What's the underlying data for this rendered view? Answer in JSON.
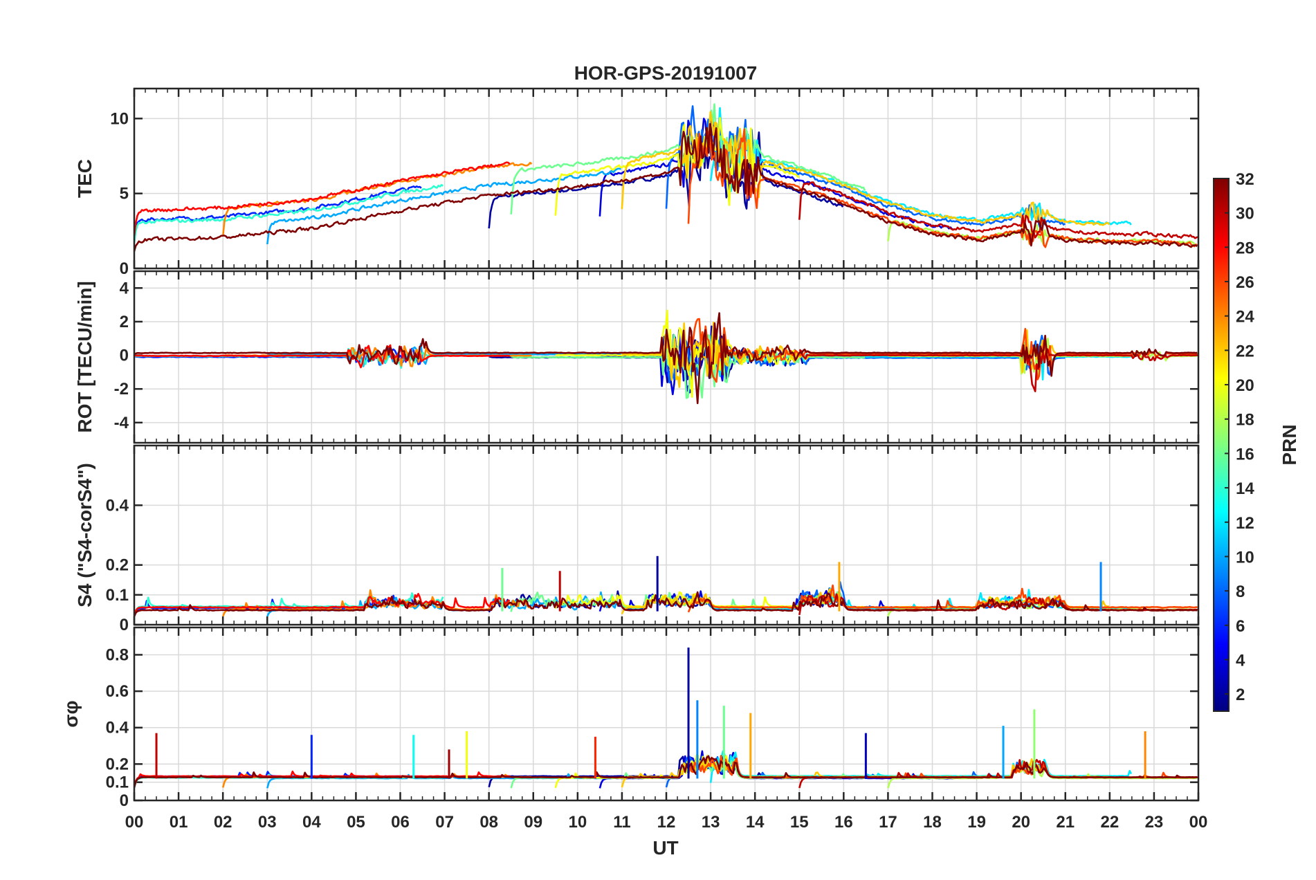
{
  "chart_data": {
    "type": "line",
    "title": "HOR-GPS-20191007",
    "xlabel": "UT",
    "xlim": [
      0,
      24
    ],
    "x_ticks": [
      0,
      1,
      2,
      3,
      4,
      5,
      6,
      7,
      8,
      9,
      10,
      11,
      12,
      13,
      14,
      15,
      16,
      17,
      18,
      19,
      20,
      21,
      22,
      23,
      24
    ],
    "x_tick_labels": [
      "00",
      "01",
      "02",
      "03",
      "04",
      "05",
      "06",
      "07",
      "08",
      "09",
      "10",
      "11",
      "12",
      "13",
      "14",
      "15",
      "16",
      "17",
      "18",
      "19",
      "20",
      "21",
      "22",
      "23",
      "00"
    ],
    "grid": true,
    "panels": [
      {
        "id": "tec",
        "ylabel": "TEC",
        "ylim": [
          0,
          12
        ],
        "y_ticks": [
          0,
          5,
          10
        ],
        "y_tick_labels": [
          "0",
          "5",
          "10"
        ],
        "profile": {
          "x": [
            0,
            2,
            4,
            6,
            8,
            10,
            11,
            12,
            12.5,
            13,
            13.5,
            14,
            15,
            16,
            17,
            18,
            19,
            20,
            21,
            22,
            23,
            24
          ],
          "y": [
            2.8,
            3.0,
            3.6,
            4.8,
            5.8,
            6.4,
            6.8,
            7.3,
            8.0,
            8.3,
            7.5,
            7.0,
            6.2,
            5.2,
            4.0,
            3.2,
            2.8,
            3.3,
            2.8,
            2.6,
            2.6,
            2.4
          ]
        },
        "spread": 1.1,
        "bursts": [
          {
            "start": 12.3,
            "end": 14.1,
            "amp": 4.5
          },
          {
            "start": 20.0,
            "end": 20.6,
            "amp": 2.0
          }
        ]
      },
      {
        "id": "rot",
        "ylabel": "ROT [TECU/min]",
        "ylim": [
          -5.2,
          5
        ],
        "y_ticks": [
          -4,
          -2,
          0,
          2,
          4
        ],
        "y_tick_labels": [
          "-4",
          "-2",
          "0",
          "2",
          "4"
        ],
        "profile": {
          "x": [
            0,
            24
          ],
          "y": [
            0,
            0
          ]
        },
        "spread": 0.15,
        "bursts": [
          {
            "start": 4.8,
            "end": 6.6,
            "amp": 1.2
          },
          {
            "start": 11.9,
            "end": 13.4,
            "amp": 4.2
          },
          {
            "start": 13.4,
            "end": 15.2,
            "amp": 0.9
          },
          {
            "start": 20.0,
            "end": 20.7,
            "amp": 2.8
          },
          {
            "start": 22.5,
            "end": 23.3,
            "amp": 0.5
          }
        ]
      },
      {
        "id": "s4",
        "ylabel": "S4 (\"S4-corS4\")",
        "ylim": [
          0,
          0.6
        ],
        "y_ticks": [
          0,
          0.1,
          0.2,
          0.4
        ],
        "y_tick_labels": [
          "0",
          "0.1",
          "0.2",
          "0.4"
        ],
        "profile": {
          "x": [
            0,
            24
          ],
          "y": [
            0.045,
            0.045
          ]
        },
        "spread": 0.03,
        "bursts": [
          {
            "start": 5.2,
            "end": 7.0,
            "amp": 0.07
          },
          {
            "start": 8.0,
            "end": 11.0,
            "amp": 0.08
          },
          {
            "start": 11.5,
            "end": 13.0,
            "amp": 0.1
          },
          {
            "start": 15.0,
            "end": 16.0,
            "amp": 0.12
          },
          {
            "start": 19.0,
            "end": 21.0,
            "amp": 0.08
          }
        ]
      },
      {
        "id": "sigphi",
        "ylabel": "σφ",
        "ylim": [
          0,
          0.95
        ],
        "y_ticks": [
          0,
          0.1,
          0.2,
          0.4,
          0.6,
          0.8
        ],
        "y_tick_labels": [
          "0",
          "0.1",
          "0.2",
          "0.4",
          "0.6",
          "0.8"
        ],
        "profile": {
          "x": [
            0,
            24
          ],
          "y": [
            0.12,
            0.12
          ]
        },
        "spread": 0.025,
        "bursts": [
          {
            "start": 12.3,
            "end": 13.6,
            "amp": 0.25
          },
          {
            "start": 19.8,
            "end": 20.6,
            "amp": 0.2
          }
        ]
      }
    ],
    "spikes": {
      "s4": [
        {
          "x": 11.8,
          "y": 0.23
        },
        {
          "x": 21.8,
          "y": 0.21
        },
        {
          "x": 8.3,
          "y": 0.19
        },
        {
          "x": 15.9,
          "y": 0.21
        },
        {
          "x": 9.6,
          "y": 0.18
        }
      ],
      "sigphi": [
        {
          "x": 12.5,
          "y": 0.84
        },
        {
          "x": 12.7,
          "y": 0.55
        },
        {
          "x": 13.3,
          "y": 0.52
        },
        {
          "x": 13.9,
          "y": 0.48
        },
        {
          "x": 0.5,
          "y": 0.37
        },
        {
          "x": 4.0,
          "y": 0.36
        },
        {
          "x": 6.3,
          "y": 0.36
        },
        {
          "x": 7.5,
          "y": 0.38
        },
        {
          "x": 10.4,
          "y": 0.35
        },
        {
          "x": 16.5,
          "y": 0.37
        },
        {
          "x": 19.6,
          "y": 0.41
        },
        {
          "x": 20.3,
          "y": 0.5
        },
        {
          "x": 22.8,
          "y": 0.38
        },
        {
          "x": 7.1,
          "y": 0.28
        }
      ]
    },
    "colorbar": {
      "label": "PRN",
      "range": [
        1,
        32
      ],
      "ticks": [
        2,
        4,
        6,
        8,
        10,
        12,
        14,
        16,
        18,
        20,
        22,
        24,
        26,
        28,
        30,
        32
      ],
      "tick_labels": [
        "2",
        "4",
        "6",
        "8",
        "10",
        "12",
        "14",
        "16",
        "18",
        "20",
        "22",
        "24",
        "26",
        "28",
        "30",
        "32"
      ],
      "colormap": "jet",
      "color_stops": [
        "#00007f",
        "#0000ff",
        "#007fff",
        "#00ffff",
        "#7fff7f",
        "#ffff00",
        "#ff7f00",
        "#ff0000",
        "#7f0000"
      ]
    },
    "series": [
      {
        "name": "PRN 2",
        "prn": 2,
        "x_range": [
          8.0,
          16.0
        ]
      },
      {
        "name": "PRN 4",
        "prn": 4,
        "x_range": [
          10.5,
          18.5
        ]
      },
      {
        "name": "PRN 6",
        "prn": 6,
        "x_range": [
          0.0,
          6.5
        ]
      },
      {
        "name": "PRN 8",
        "prn": 8,
        "x_range": [
          12.0,
          21.0
        ]
      },
      {
        "name": "PRN 10",
        "prn": 10,
        "x_range": [
          3.0,
          11.0
        ]
      },
      {
        "name": "PRN 12",
        "prn": 12,
        "x_range": [
          13.0,
          22.5
        ]
      },
      {
        "name": "PRN 14",
        "prn": 14,
        "x_range": [
          0.0,
          7.0
        ]
      },
      {
        "name": "PRN 16",
        "prn": 16,
        "x_range": [
          8.5,
          16.5
        ]
      },
      {
        "name": "PRN 18",
        "prn": 18,
        "x_range": [
          17.0,
          24.0
        ]
      },
      {
        "name": "PRN 20",
        "prn": 20,
        "x_range": [
          9.5,
          15.0
        ]
      },
      {
        "name": "PRN 22",
        "prn": 22,
        "x_range": [
          11.0,
          22.0
        ]
      },
      {
        "name": "PRN 24",
        "prn": 24,
        "x_range": [
          2.0,
          9.0
        ]
      },
      {
        "name": "PRN 26",
        "prn": 26,
        "x_range": [
          12.5,
          24.0
        ]
      },
      {
        "name": "PRN 28",
        "prn": 28,
        "x_range": [
          0.0,
          8.5
        ]
      },
      {
        "name": "PRN 30",
        "prn": 30,
        "x_range": [
          15.0,
          24.0
        ]
      },
      {
        "name": "PRN 32",
        "prn": 32,
        "x_range": [
          0.0,
          24.0
        ]
      }
    ]
  }
}
